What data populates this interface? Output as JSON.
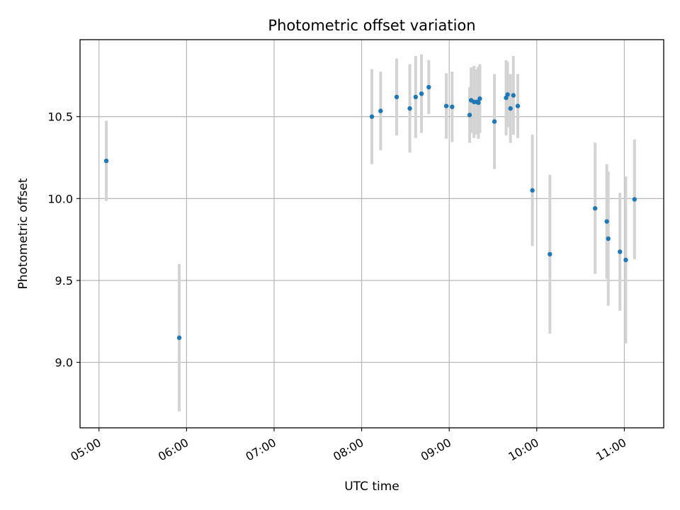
{
  "chart_data": {
    "type": "scatter",
    "title": "Photometric offset variation",
    "xlabel": "UTC time",
    "ylabel": "Photometric offset",
    "xlim": [
      "04:47",
      "11:27"
    ],
    "ylim": [
      8.6,
      10.97
    ],
    "grid": true,
    "x_ticks": [
      "05:00",
      "06:00",
      "07:00",
      "08:00",
      "09:00",
      "10:00",
      "11:00"
    ],
    "y_ticks": [
      "9.0",
      "9.5",
      "10.0",
      "10.5"
    ],
    "series": [
      {
        "marker_color": "#1f77b4",
        "errorbar_color": "#d3d3d3",
        "points": [
          {
            "x": "05:05",
            "y": 10.23,
            "err": 0.245
          },
          {
            "x": "05:55",
            "y": 9.15,
            "err": 0.45
          },
          {
            "x": "08:07",
            "y": 10.5,
            "err": 0.29
          },
          {
            "x": "08:13",
            "y": 10.535,
            "err": 0.24
          },
          {
            "x": "08:24",
            "y": 10.62,
            "err": 0.235
          },
          {
            "x": "08:33",
            "y": 10.55,
            "err": 0.27
          },
          {
            "x": "08:37",
            "y": 10.62,
            "err": 0.25
          },
          {
            "x": "08:41",
            "y": 10.64,
            "err": 0.24
          },
          {
            "x": "08:46",
            "y": 10.68,
            "err": 0.165
          },
          {
            "x": "08:58",
            "y": 10.565,
            "err": 0.2
          },
          {
            "x": "09:02",
            "y": 10.56,
            "err": 0.215
          },
          {
            "x": "09:14",
            "y": 10.51,
            "err": 0.17
          },
          {
            "x": "09:15",
            "y": 10.6,
            "err": 0.2
          },
          {
            "x": "09:17",
            "y": 10.59,
            "err": 0.22
          },
          {
            "x": "09:19",
            "y": 10.59,
            "err": 0.2
          },
          {
            "x": "09:20",
            "y": 10.585,
            "err": 0.22
          },
          {
            "x": "09:21",
            "y": 10.61,
            "err": 0.21
          },
          {
            "x": "09:31",
            "y": 10.47,
            "err": 0.29
          },
          {
            "x": "09:39",
            "y": 10.615,
            "err": 0.23
          },
          {
            "x": "09:40",
            "y": 10.635,
            "err": 0.2
          },
          {
            "x": "09:42",
            "y": 10.55,
            "err": 0.21
          },
          {
            "x": "09:44",
            "y": 10.63,
            "err": 0.24
          },
          {
            "x": "09:47",
            "y": 10.565,
            "err": 0.195
          },
          {
            "x": "09:57",
            "y": 10.05,
            "err": 0.34
          },
          {
            "x": "10:09",
            "y": 9.66,
            "err": 0.485
          },
          {
            "x": "10:40",
            "y": 9.94,
            "err": 0.4
          },
          {
            "x": "10:48",
            "y": 9.86,
            "err": 0.35
          },
          {
            "x": "10:49",
            "y": 9.755,
            "err": 0.41
          },
          {
            "x": "10:57",
            "y": 9.675,
            "err": 0.36
          },
          {
            "x": "11:01",
            "y": 9.625,
            "err": 0.51
          },
          {
            "x": "11:07",
            "y": 9.995,
            "err": 0.365
          }
        ]
      }
    ]
  }
}
